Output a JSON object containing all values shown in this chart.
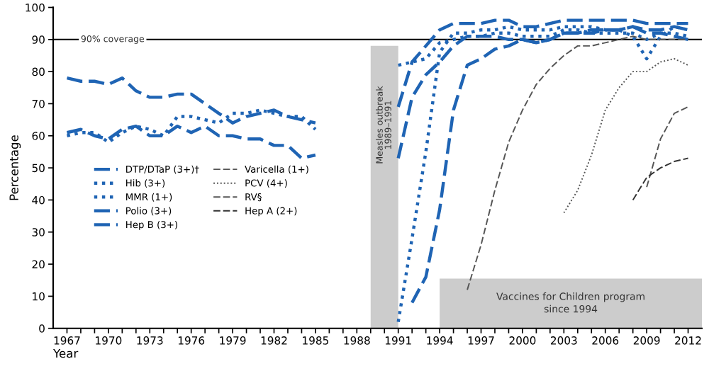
{
  "chart_data": {
    "type": "line",
    "xlabel": "Year",
    "ylabel": "Percentage",
    "x": [
      1967,
      1968,
      1969,
      1970,
      1971,
      1972,
      1973,
      1974,
      1975,
      1976,
      1977,
      1978,
      1979,
      1980,
      1981,
      1982,
      1983,
      1984,
      1985,
      1986,
      1987,
      1988,
      1989,
      1990,
      1991,
      1992,
      1993,
      1994,
      1995,
      1996,
      1997,
      1998,
      1999,
      2000,
      2001,
      2002,
      2003,
      2004,
      2005,
      2006,
      2007,
      2008,
      2009,
      2010,
      2011,
      2012
    ],
    "xlim": [
      1966,
      2013
    ],
    "xticks": [
      1967,
      {
        "value": 1968,
        "label": null
      },
      {
        "value": 1969,
        "label": null
      },
      1970,
      {
        "value": 1971,
        "label": null
      },
      {
        "value": 1972,
        "label": null
      },
      1973,
      {
        "value": 1974,
        "label": null
      },
      {
        "value": 1975,
        "label": null
      },
      1976,
      {
        "value": 1977,
        "label": null
      },
      {
        "value": 1978,
        "label": null
      },
      1979,
      {
        "value": 1980,
        "label": null
      },
      {
        "value": 1981,
        "label": null
      },
      1982,
      {
        "value": 1983,
        "label": null
      },
      {
        "value": 1984,
        "label": null
      },
      1985,
      {
        "value": 1986,
        "label": null
      },
      {
        "value": 1987,
        "label": null
      },
      1988,
      {
        "value": 1989,
        "label": null
      },
      {
        "value": 1990,
        "label": null
      },
      1991,
      {
        "value": 1992,
        "label": null
      },
      {
        "value": 1993,
        "label": null
      },
      1994,
      {
        "value": 1995,
        "label": null
      },
      {
        "value": 1996,
        "label": null
      },
      1997,
      {
        "value": 1998,
        "label": null
      },
      {
        "value": 1999,
        "label": null
      },
      2000,
      {
        "value": 2001,
        "label": null
      },
      {
        "value": 2002,
        "label": null
      },
      2003,
      {
        "value": 2004,
        "label": null
      },
      {
        "value": 2005,
        "label": null
      },
      2006,
      {
        "value": 2007,
        "label": null
      },
      {
        "value": 2008,
        "label": null
      },
      2009,
      {
        "value": 2010,
        "label": null
      },
      {
        "value": 2011,
        "label": null
      },
      2012
    ],
    "ylim": [
      0,
      100
    ],
    "yticks": [
      0,
      10,
      20,
      30,
      40,
      50,
      60,
      70,
      80,
      90,
      100
    ],
    "grid": false,
    "legend": "left",
    "marker": "none",
    "series": [
      {
        "name": "DTP/DTaP (3+)†",
        "color": "#1f64b4",
        "line_style": "dashed",
        "values": [
          78,
          77,
          77,
          76,
          78,
          74,
          72,
          72,
          73,
          73,
          70,
          67,
          64,
          66,
          67,
          68,
          66,
          65,
          64,
          null,
          null,
          null,
          null,
          null,
          69,
          83,
          88,
          93,
          95,
          95,
          95,
          96,
          96,
          94,
          94,
          95,
          96,
          96,
          96,
          96,
          96,
          96,
          95,
          95,
          95,
          95
        ]
      },
      {
        "name": "Hib (3+)",
        "color": "#1f64b4",
        "line_style": "dotted",
        "values": [
          null,
          null,
          null,
          null,
          null,
          null,
          null,
          null,
          null,
          null,
          null,
          null,
          null,
          null,
          null,
          null,
          null,
          null,
          null,
          null,
          null,
          null,
          null,
          null,
          2,
          28,
          55,
          86,
          92,
          92,
          93,
          93,
          94,
          93,
          93,
          93,
          94,
          94,
          94,
          93,
          93,
          91,
          84,
          91,
          94,
          93
        ]
      },
      {
        "name": "MMR (1+)",
        "color": "#1f64b4",
        "line_style": "dotted",
        "values": [
          60,
          61,
          61,
          58,
          61,
          63,
          62,
          60,
          66,
          66,
          65,
          64,
          67,
          67,
          68,
          67,
          66,
          66,
          62,
          null,
          null,
          null,
          null,
          null,
          82,
          83,
          84,
          89,
          90,
          91,
          91,
          92,
          92,
          91,
          91,
          91,
          93,
          93,
          92,
          92,
          92,
          92,
          90,
          92,
          92,
          91
        ]
      },
      {
        "name": "Polio (3+)",
        "color": "#1f64b4",
        "line_style": "dashed",
        "values": [
          61,
          62,
          60,
          59,
          62,
          63,
          60,
          60,
          63,
          61,
          63,
          60,
          60,
          59,
          59,
          57,
          57,
          53,
          54,
          null,
          null,
          null,
          null,
          null,
          53,
          72,
          79,
          83,
          88,
          91,
          91,
          91,
          90,
          90,
          89,
          90,
          92,
          92,
          92,
          93,
          93,
          94,
          93,
          93,
          94,
          93
        ]
      },
      {
        "name": "Hep B (3+)",
        "color": "#1f64b4",
        "line_style": "dashed",
        "values": [
          null,
          null,
          null,
          null,
          null,
          null,
          null,
          null,
          null,
          null,
          null,
          null,
          null,
          null,
          null,
          null,
          null,
          null,
          null,
          null,
          null,
          null,
          null,
          null,
          null,
          8,
          16,
          37,
          68,
          82,
          84,
          87,
          88,
          90,
          89,
          90,
          92,
          92,
          93,
          93,
          93,
          94,
          92,
          92,
          91,
          90
        ]
      },
      {
        "name": "Varicella (1+)",
        "color": "#555555",
        "line_style": "dashed",
        "values": [
          null,
          null,
          null,
          null,
          null,
          null,
          null,
          null,
          null,
          null,
          null,
          null,
          null,
          null,
          null,
          null,
          null,
          null,
          null,
          null,
          null,
          null,
          null,
          null,
          null,
          null,
          null,
          null,
          null,
          12,
          26,
          43,
          58,
          68,
          76,
          81,
          85,
          88,
          88,
          89,
          90,
          91,
          90,
          90,
          90,
          90
        ]
      },
      {
        "name": "PCV (4+)",
        "color": "#555555",
        "line_style": "dotted",
        "values": [
          null,
          null,
          null,
          null,
          null,
          null,
          null,
          null,
          null,
          null,
          null,
          null,
          null,
          null,
          null,
          null,
          null,
          null,
          null,
          null,
          null,
          null,
          null,
          null,
          null,
          null,
          null,
          null,
          null,
          null,
          null,
          null,
          null,
          null,
          null,
          null,
          36,
          43,
          54,
          68,
          75,
          80,
          80,
          83,
          84,
          82
        ]
      },
      {
        "name": "RV§",
        "color": "#555555",
        "line_style": "dashed",
        "values": [
          null,
          null,
          null,
          null,
          null,
          null,
          null,
          null,
          null,
          null,
          null,
          null,
          null,
          null,
          null,
          null,
          null,
          null,
          null,
          null,
          null,
          null,
          null,
          null,
          null,
          null,
          null,
          null,
          null,
          null,
          null,
          null,
          null,
          null,
          null,
          null,
          null,
          null,
          null,
          null,
          null,
          null,
          44,
          59,
          67,
          69
        ]
      },
      {
        "name": "Hep A (2+)",
        "color": "#333333",
        "line_style": "dashed",
        "values": [
          null,
          null,
          null,
          null,
          null,
          null,
          null,
          null,
          null,
          null,
          null,
          null,
          null,
          null,
          null,
          null,
          null,
          null,
          null,
          null,
          null,
          null,
          null,
          null,
          null,
          null,
          null,
          null,
          null,
          null,
          null,
          null,
          null,
          null,
          null,
          null,
          null,
          null,
          null,
          null,
          null,
          40,
          47,
          50,
          52,
          53
        ]
      }
    ],
    "ref_lines": [
      {
        "axis": "y",
        "value": 90,
        "label": "90% coverage",
        "color": "#000000"
      }
    ],
    "bands": [
      {
        "axis": "x",
        "from": 1989,
        "to": 1991,
        "label": "Measles outbreak\n1989–1991",
        "color": "#cccccc"
      },
      {
        "axis": "x",
        "from": 1994,
        "to": 2013,
        "label": "Vaccines for Children program\nsince 1994",
        "color": "#cccccc"
      }
    ]
  }
}
